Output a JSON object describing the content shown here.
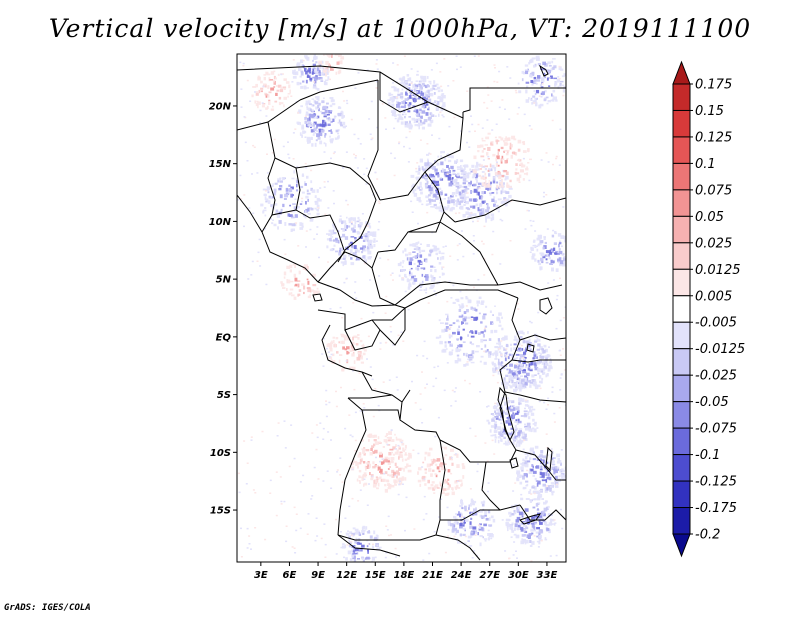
{
  "title": "Vertical velocity [m/s] at 1000hPa, VT: 2019111100",
  "credit": "GrADS: IGES/COLA",
  "map": {
    "lat_ticks": [
      "20N",
      "15N",
      "10N",
      "5N",
      "EQ",
      "5S",
      "10S",
      "15S"
    ],
    "lon_ticks": [
      "3E",
      "6E",
      "9E",
      "12E",
      "15E",
      "18E",
      "21E",
      "24E",
      "27E",
      "30E",
      "33E"
    ],
    "lon_range": [
      0.5,
      35
    ],
    "lat_range": [
      -19.5,
      24.5
    ]
  },
  "colorbar": {
    "labels": [
      "0.175",
      "0.15",
      "0.125",
      "0.1",
      "0.075",
      "0.05",
      "0.025",
      "0.0125",
      "0.005",
      "-0.005",
      "-0.0125",
      "-0.025",
      "-0.05",
      "-0.075",
      "-0.1",
      "-0.125",
      "-0.175",
      "-0.2"
    ],
    "colors": [
      "#a81a1a",
      "#c42a2a",
      "#d83a3a",
      "#e55656",
      "#ec7676",
      "#f29494",
      "#f6b1b1",
      "#f9cccc",
      "#fce6e6",
      "#ffffff",
      "#e2e2fb",
      "#c9c9f5",
      "#a9a9ee",
      "#8a8ae6",
      "#6b6bdc",
      "#4d4dd0",
      "#3232c0",
      "#1c1ca8",
      "#0a0a8e"
    ]
  },
  "styles": {
    "positive": "#f08a8a",
    "negative": "#7070e0",
    "border": "#000000"
  }
}
